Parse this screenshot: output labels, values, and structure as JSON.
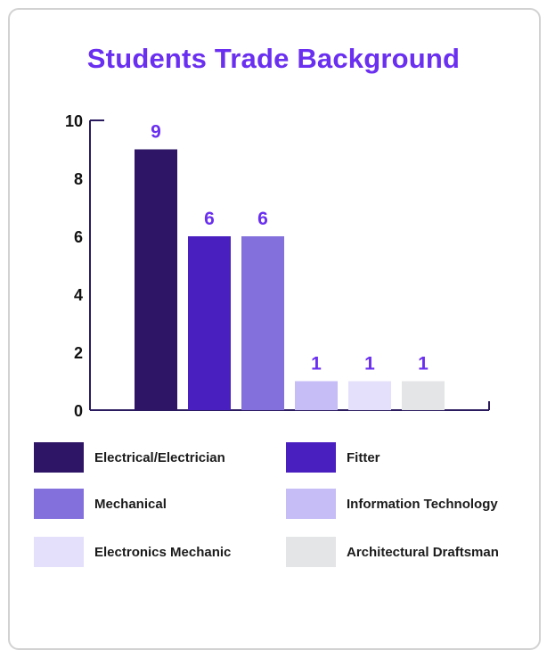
{
  "chart_data": {
    "type": "bar",
    "title": "Students Trade Background",
    "categories": [
      "Electrical/Electrician",
      "Fitter",
      "Mechanical",
      "Information Technology",
      "Electronics Mechanic",
      "Architectural Draftsman"
    ],
    "values": [
      9,
      6,
      6,
      1,
      1,
      1
    ],
    "colors": [
      "#2e1565",
      "#4a1fc0",
      "#8470dc",
      "#c6bdf7",
      "#e4e0fb",
      "#e4e5e7"
    ],
    "value_label_color": "#6a2ff0",
    "ylim": [
      0,
      10
    ],
    "yticks": [
      0,
      2,
      4,
      6,
      8,
      10
    ],
    "xlabel": "",
    "ylabel": "",
    "grid": false,
    "legend_position": "bottom"
  }
}
